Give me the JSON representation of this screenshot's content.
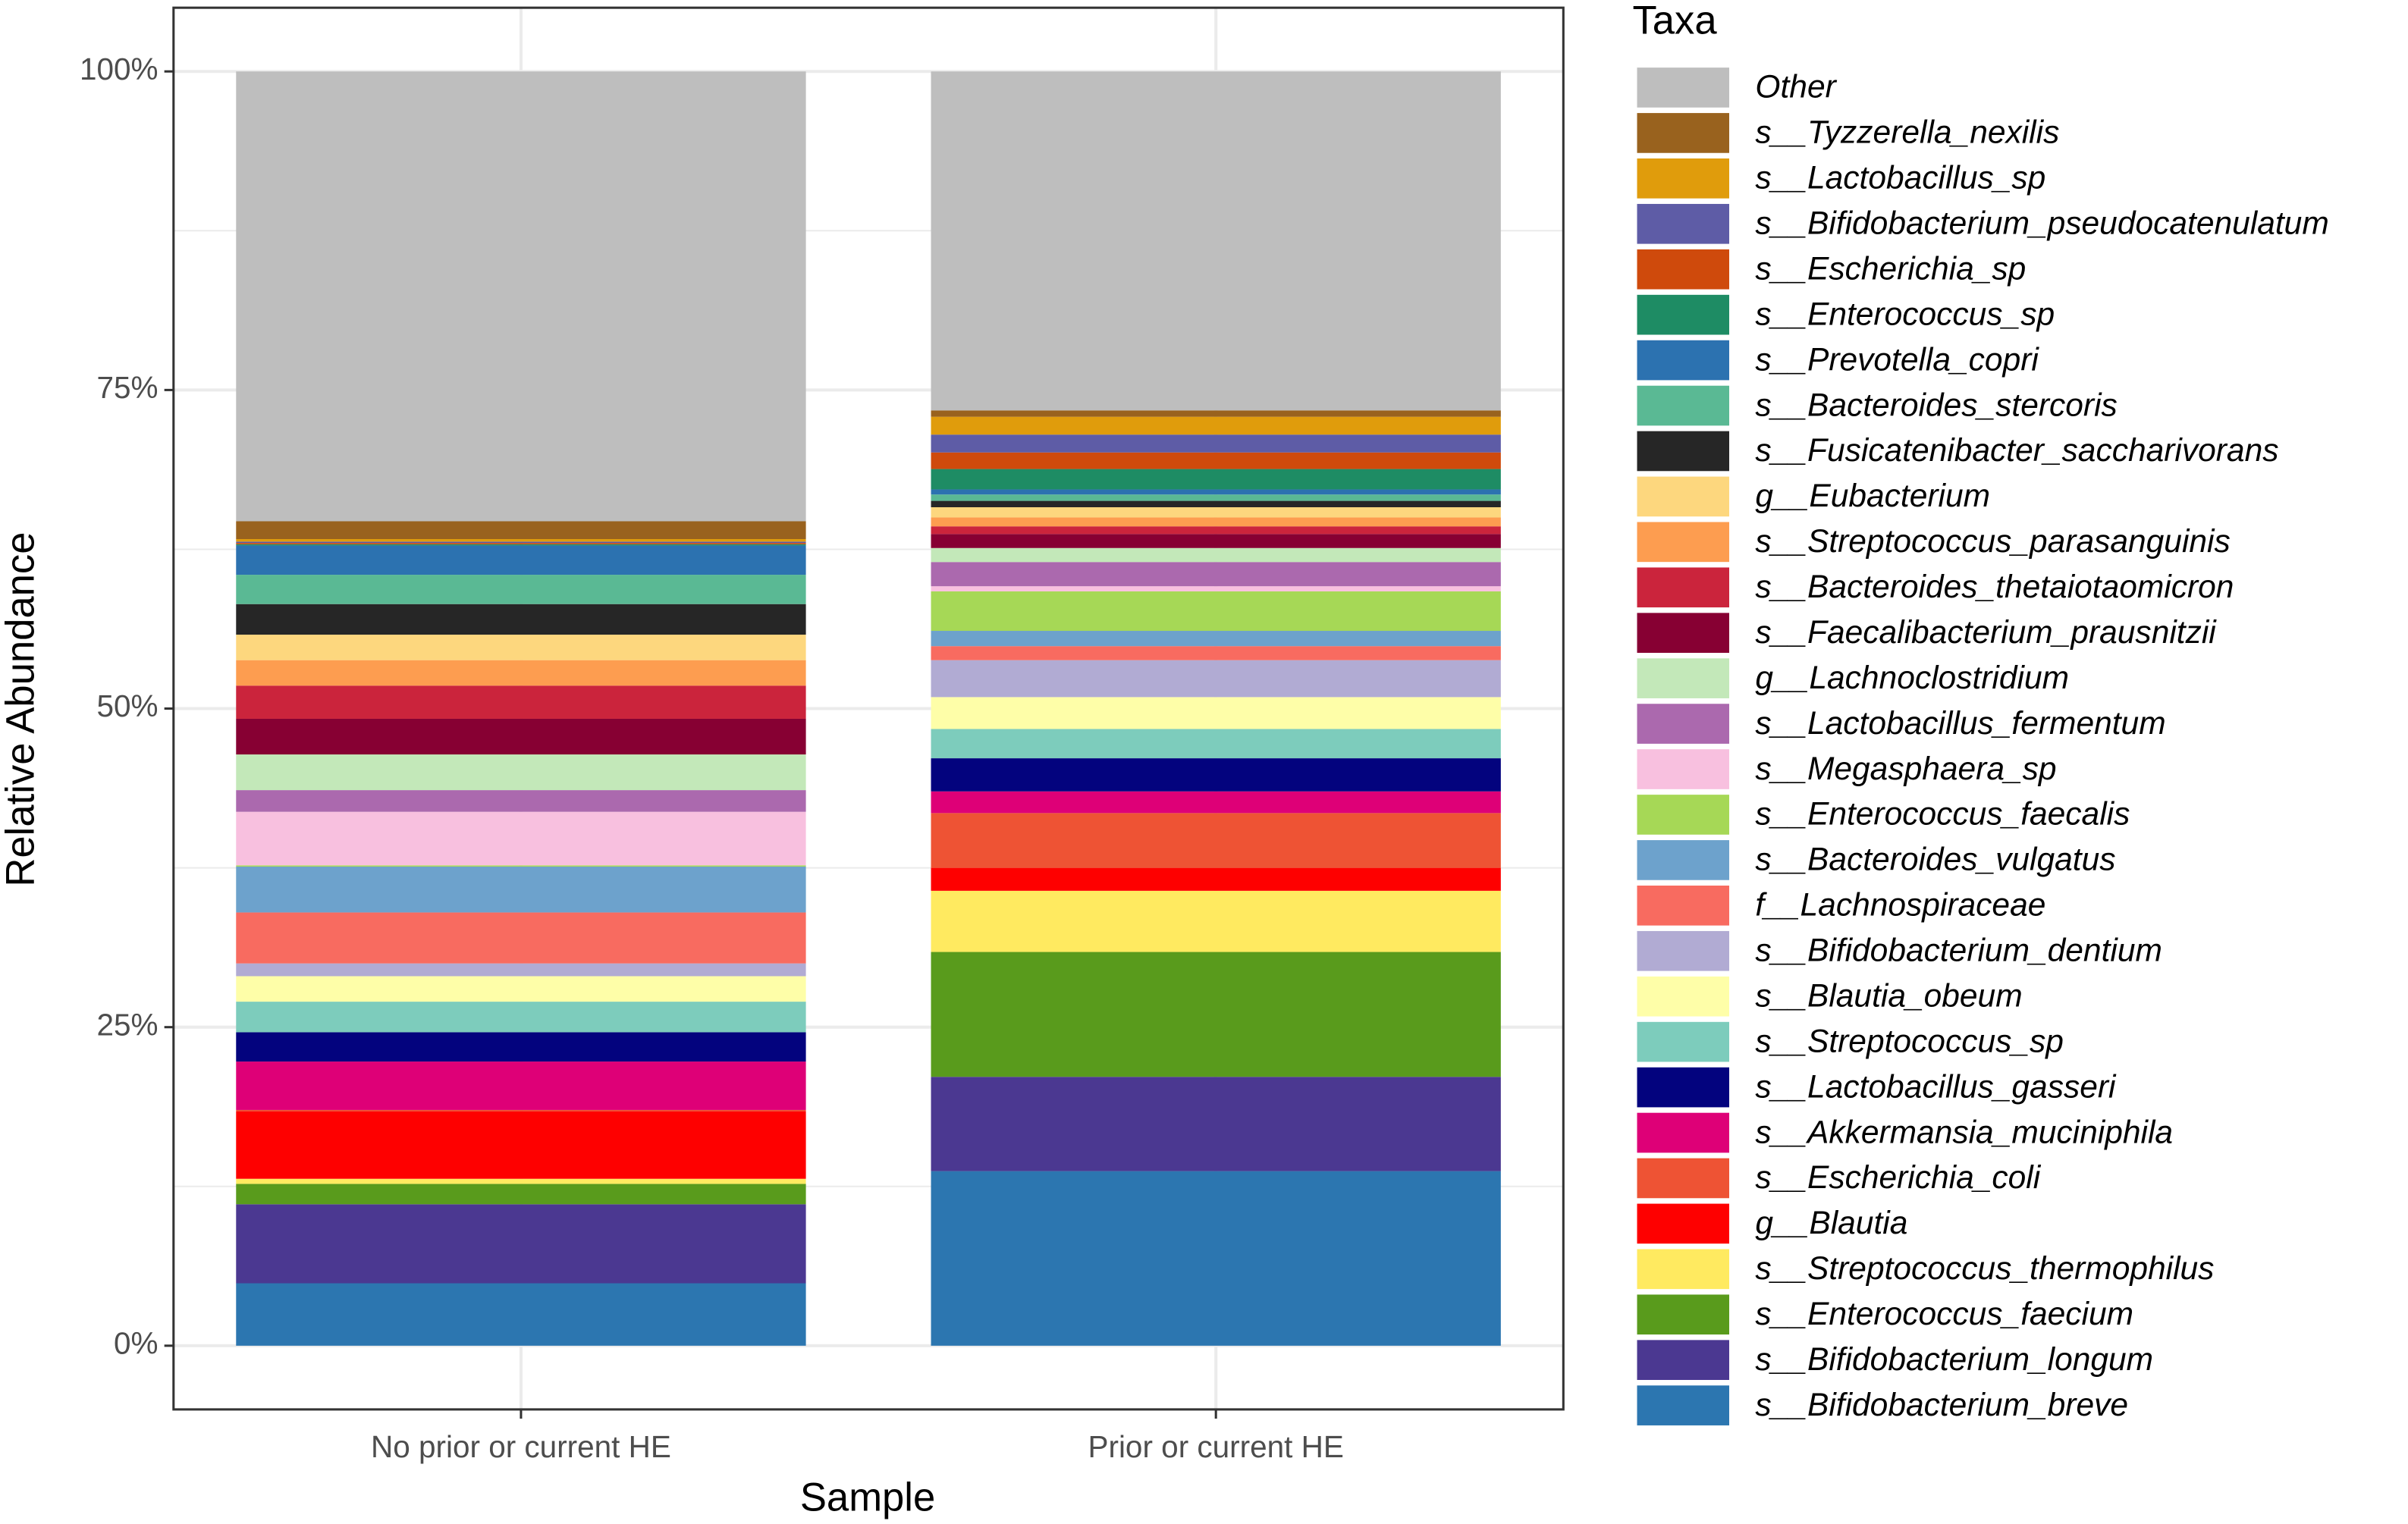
{
  "chart_data": {
    "type": "stacked_bar",
    "xlabel": "Sample",
    "ylabel": "Relative Abundance",
    "legend_title": "Taxa",
    "categories": [
      "No prior or current HE",
      "Prior or current HE"
    ],
    "ylim": [
      -5,
      105
    ],
    "yticks": [
      {
        "value": 0,
        "label": "0%"
      },
      {
        "value": 25,
        "label": "25%"
      },
      {
        "value": 50,
        "label": "50%"
      },
      {
        "value": 75,
        "label": "75%"
      },
      {
        "value": 100,
        "label": "100%"
      }
    ],
    "yminor": [
      12.5,
      37.5,
      62.5,
      87.5
    ],
    "grid": true,
    "legend": "right",
    "series": [
      {
        "name": "Other",
        "color": "#bebebe",
        "values": [
          35.3,
          26.6
        ]
      },
      {
        "name": "s__Tyzzerella_nexilis",
        "color": "#99621e",
        "values": [
          1.4,
          0.5
        ]
      },
      {
        "name": "s__Lactobacillus_sp",
        "color": "#e09c0c",
        "values": [
          0.2,
          1.4
        ]
      },
      {
        "name": "s__Bifidobacterium_pseudocatenulatum",
        "color": "#5e5ca6",
        "values": [
          0.1,
          1.4
        ]
      },
      {
        "name": "s__Escherichia_sp",
        "color": "#cf4a0c",
        "values": [
          0.1,
          1.3
        ]
      },
      {
        "name": "s__Enterococcus_sp",
        "color": "#1e8c64",
        "values": [
          0.1,
          1.6
        ]
      },
      {
        "name": "s__Prevotella_copri",
        "color": "#2c72b0",
        "values": [
          2.3,
          0.4
        ]
      },
      {
        "name": "s__Bacteroides_stercoris",
        "color": "#5ab994",
        "values": [
          2.3,
          0.5
        ]
      },
      {
        "name": "s__Fusicatenibacter_saccharivorans",
        "color": "#262626",
        "values": [
          2.4,
          0.5
        ]
      },
      {
        "name": "g__Eubacterium",
        "color": "#fdd77e",
        "values": [
          2.0,
          0.8
        ]
      },
      {
        "name": "s__Streptococcus_parasanguinis",
        "color": "#fd9d50",
        "values": [
          2.0,
          0.7
        ]
      },
      {
        "name": "s__Bacteroides_thetaiotaomicron",
        "color": "#cb243c",
        "values": [
          2.6,
          0.6
        ]
      },
      {
        "name": "s__Faecalibacterium_prausnitzii",
        "color": "#870033",
        "values": [
          2.8,
          1.1
        ]
      },
      {
        "name": "g__Lachnoclostridium",
        "color": "#c3e8b9",
        "values": [
          2.8,
          1.1
        ]
      },
      {
        "name": "s__Lactobacillus_fermentum",
        "color": "#ab69ae",
        "values": [
          1.7,
          1.9
        ]
      },
      {
        "name": "s__Megasphaera_sp",
        "color": "#f8c0df",
        "values": [
          4.2,
          0.4
        ]
      },
      {
        "name": "s__Enterococcus_faecalis",
        "color": "#a6d856",
        "values": [
          0.1,
          3.1
        ]
      },
      {
        "name": "s__Bacteroides_vulgatus",
        "color": "#6da2cc",
        "values": [
          3.6,
          1.2
        ]
      },
      {
        "name": "f__Lachnospiraceae",
        "color": "#f86b60",
        "values": [
          4.0,
          1.1
        ]
      },
      {
        "name": "s__Bifidobacterium_dentium",
        "color": "#b1abd3",
        "values": [
          1.0,
          2.9
        ]
      },
      {
        "name": "s__Blautia_obeum",
        "color": "#fefea8",
        "values": [
          2.0,
          2.5
        ]
      },
      {
        "name": "s__Streptococcus_sp",
        "color": "#7dccbc",
        "values": [
          2.4,
          2.3
        ]
      },
      {
        "name": "s__Lactobacillus_gasseri",
        "color": "#03037e",
        "values": [
          2.3,
          2.6
        ]
      },
      {
        "name": "s__Akkermansia_muciniphila",
        "color": "#de0077",
        "values": [
          3.8,
          1.7
        ]
      },
      {
        "name": "s__Escherichia_coli",
        "color": "#ee5334",
        "values": [
          0.1,
          4.3
        ]
      },
      {
        "name": "g__Blautia",
        "color": "#fe0000",
        "values": [
          5.3,
          1.8
        ]
      },
      {
        "name": "s__Streptococcus_thermophilus",
        "color": "#ffea60",
        "values": [
          0.4,
          4.8
        ]
      },
      {
        "name": "s__Enterococcus_faecium",
        "color": "#599b1c",
        "values": [
          1.6,
          9.8
        ]
      },
      {
        "name": "s__Bifidobacterium_longum",
        "color": "#4b3891",
        "values": [
          6.2,
          7.4
        ]
      },
      {
        "name": "s__Bifidobacterium_breve",
        "color": "#2c76b0",
        "values": [
          4.9,
          13.7
        ]
      }
    ]
  }
}
